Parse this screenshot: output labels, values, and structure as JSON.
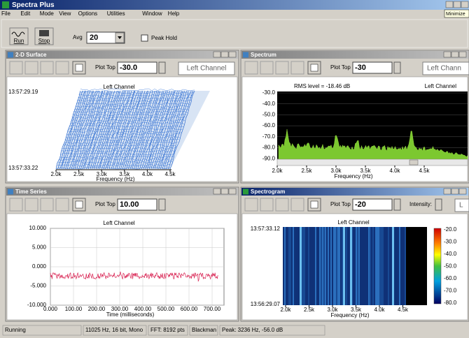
{
  "app": {
    "title": "Spectra Plus",
    "menu": [
      "File",
      "Edit",
      "Mode",
      "View",
      "Options",
      "Utilities",
      "Window",
      "Help"
    ],
    "tooltip": "Minimize",
    "toolbar": {
      "run": "Run",
      "stop": "Stop",
      "avg_label": "Avg",
      "avg_value": "20",
      "peak_hold": "Peak Hold"
    }
  },
  "windows": {
    "surface": {
      "title": "2-D Surface",
      "plot_top_label": "Plot Top",
      "plot_top": "-30.0",
      "channel_button": "Left Channel",
      "plot_title": "Left Channel",
      "y_labels": [
        "13:57:29.19",
        "13:57:33.22"
      ],
      "xticks": [
        "2.0k",
        "2.5k",
        "3.0k",
        "3.5k",
        "4.0k",
        "4.5k"
      ],
      "xlabel": "Frequency (Hz)"
    },
    "spectrum": {
      "title": "Spectrum",
      "plot_top_label": "Plot Top",
      "plot_top": "-30",
      "channel_button": "Left Chann",
      "rms": "RMS level = -18.46 dB",
      "plot_title": "Left Channel",
      "yticks": [
        "-30.0",
        "-40.0",
        "-50.0",
        "-60.0",
        "-70.0",
        "-80.0",
        "-90.0"
      ],
      "xticks": [
        "2.0k",
        "2.5k",
        "3.0k",
        "3.5k",
        "4.0k",
        "4.5k"
      ],
      "xlabel": "Frequency (Hz)"
    },
    "time_series": {
      "title": "Time Series",
      "plot_top_label": "Plot Top",
      "plot_top": "10.00",
      "plot_title": "Left Channel",
      "yticks": [
        "10.000",
        "5.000",
        "0.000",
        "-5.000",
        "-10.000"
      ],
      "xticks": [
        "0.000",
        "100.00",
        "200.00",
        "300.00",
        "400.00",
        "500.00",
        "600.00",
        "700.00"
      ],
      "xlabel": "Time (milliseconds)"
    },
    "spectrogram": {
      "title": "Spectrogram",
      "plot_top_label": "Plot Top",
      "plot_top": "-20",
      "intensity_label": "Intensity:",
      "channel_button": "L",
      "plot_title": "Left Channel",
      "y_labels": [
        "13:57:33.12",
        "13:56:29.07"
      ],
      "xticks": [
        "2.0k",
        "2.5k",
        "3.0k",
        "3.5k",
        "4.0k",
        "4.5k"
      ],
      "xlabel": "Frequency (Hz)",
      "colorbar_ticks": [
        "-20.0",
        "-30.0",
        "-40.0",
        "-50.0",
        "-60.0",
        "-70.0",
        "-80.0"
      ]
    }
  },
  "status": [
    "Running",
    "11025 Hz, 16 bit, Mono",
    "FFT: 8192 pts",
    "Blackman",
    "Peak: 3236 Hz, -56.0 dB"
  ]
}
